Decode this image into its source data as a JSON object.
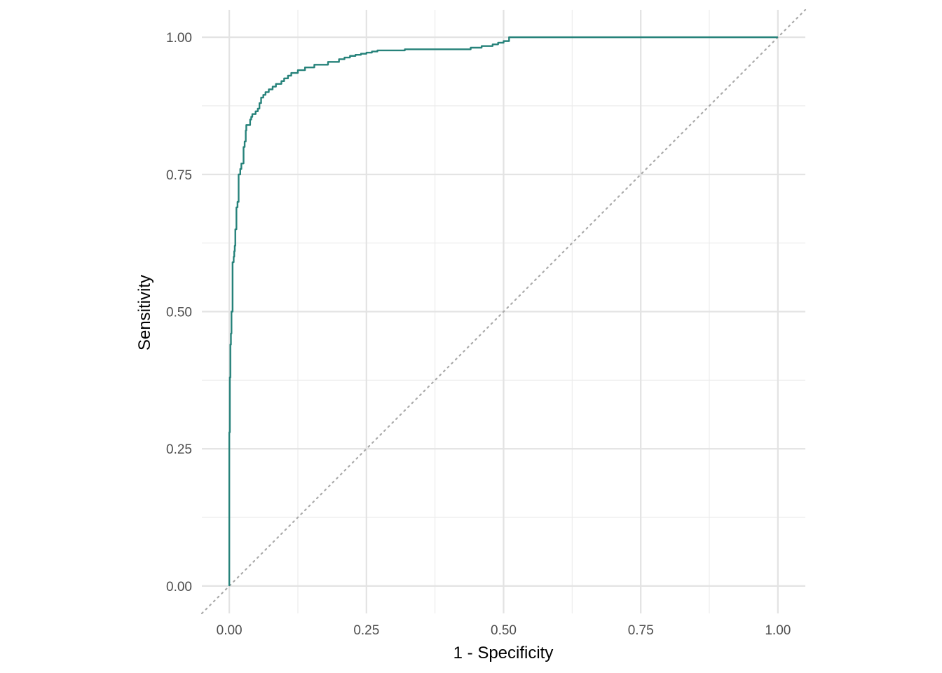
{
  "chart_data": {
    "type": "line",
    "title": "",
    "xlabel": "1 - Specificity",
    "ylabel": "Sensitivity",
    "xlim": [
      -0.05,
      1.05
    ],
    "ylim": [
      -0.05,
      1.05
    ],
    "x_ticks": [
      "0.00",
      "0.25",
      "0.50",
      "0.75",
      "1.00"
    ],
    "y_ticks": [
      "0.00",
      "0.25",
      "0.50",
      "0.75",
      "1.00"
    ],
    "grid": true,
    "reference_line": {
      "x": [
        0,
        1
      ],
      "y": [
        0,
        1
      ],
      "style": "dotted",
      "color": "#aaaaaa"
    },
    "series": [
      {
        "color": "#26827a",
        "x": [
          0,
          0.001,
          0.002,
          0.003,
          0.004,
          0.006,
          0.008,
          0.009,
          0.01,
          0.011,
          0.013,
          0.015,
          0.017,
          0.018,
          0.02,
          0.022,
          0.026,
          0.028,
          0.03,
          0.031,
          0.033,
          0.035,
          0.036,
          0.038,
          0.04,
          0.042,
          0.045,
          0.048,
          0.052,
          0.055,
          0.058,
          0.062,
          0.066,
          0.068,
          0.07,
          0.072,
          0.075,
          0.079,
          0.085,
          0.09,
          0.095,
          0.1,
          0.107,
          0.113,
          0.12,
          0.125,
          0.13,
          0.138,
          0.145,
          0.155,
          0.162,
          0.17,
          0.18,
          0.19,
          0.2,
          0.21,
          0.22,
          0.23,
          0.24,
          0.25,
          0.26,
          0.27,
          0.3,
          0.32,
          0.34,
          0.36,
          0.4,
          0.44,
          0.46,
          0.48,
          0.49,
          0.5,
          0.51,
          1.0
        ],
        "y": [
          0,
          0.28,
          0.38,
          0.44,
          0.46,
          0.5,
          0.59,
          0.6,
          0.61,
          0.62,
          0.65,
          0.69,
          0.7,
          0.75,
          0.75,
          0.76,
          0.77,
          0.8,
          0.81,
          0.83,
          0.84,
          0.84,
          0.84,
          0.84,
          0.85,
          0.855,
          0.86,
          0.86,
          0.865,
          0.87,
          0.88,
          0.89,
          0.895,
          0.9,
          0.9,
          0.9,
          0.905,
          0.905,
          0.91,
          0.915,
          0.915,
          0.92,
          0.925,
          0.93,
          0.935,
          0.935,
          0.94,
          0.94,
          0.945,
          0.945,
          0.95,
          0.95,
          0.95,
          0.955,
          0.955,
          0.96,
          0.963,
          0.966,
          0.968,
          0.97,
          0.972,
          0.974,
          0.976,
          0.976,
          0.978,
          0.978,
          0.978,
          0.978,
          0.981,
          0.984,
          0.987,
          0.99,
          0.993,
          1.0
        ]
      }
    ]
  }
}
